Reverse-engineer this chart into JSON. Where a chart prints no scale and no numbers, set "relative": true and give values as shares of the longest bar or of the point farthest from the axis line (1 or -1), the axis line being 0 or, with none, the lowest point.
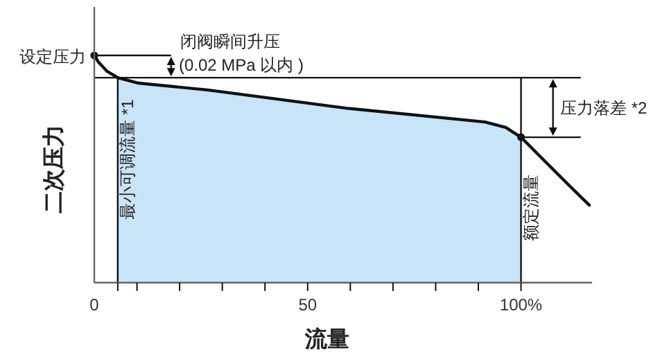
{
  "chart_data": {
    "type": "line",
    "relative": true,
    "xlabel": "流量",
    "ylabel": "二次压力",
    "xlim": [
      0,
      116
    ],
    "xticks": [
      0,
      {
        "value": 5.5,
        "label": null
      },
      {
        "value": 10,
        "label": null
      },
      {
        "value": 20,
        "label": null
      },
      {
        "value": 30,
        "label": null
      },
      {
        "value": 40,
        "label": null
      },
      50,
      {
        "value": 60,
        "label": null
      },
      {
        "value": 70,
        "label": null
      },
      {
        "value": 80,
        "label": null
      },
      {
        "value": 90,
        "label": null
      },
      {
        "value": 100,
        "label": "100%"
      }
    ],
    "tick_labels": "x",
    "line_style": "solid",
    "series": [
      {
        "type": "area",
        "color": "#c8e4f8",
        "x": [
          5.5,
          10.4,
          26.6,
          59,
          91.6,
          96.4,
          100
        ],
        "values": [
          0.902,
          0.878,
          0.848,
          0.768,
          0.707,
          0.683,
          0.64
        ]
      },
      {
        "type": "line",
        "color": "#111111",
        "x": [
          0,
          1,
          3,
          5.5,
          10.4,
          26.6,
          59,
          91.6,
          96.4,
          100,
          104.5,
          111,
          116
        ],
        "values": [
          1,
          0.97,
          0.93,
          0.902,
          0.878,
          0.848,
          0.768,
          0.707,
          0.683,
          0.64,
          0.555,
          0.433,
          0.341
        ]
      },
      {
        "type": "scatter",
        "color": "#111111",
        "marker": "circle",
        "x": [
          0,
          100
        ],
        "values": [
          1,
          0.64
        ]
      }
    ],
    "ref_lines": [
      {
        "axis": "y",
        "value": 1,
        "label": "设定压力"
      },
      {
        "axis": "y",
        "value": 0.902,
        "label": null
      },
      {
        "axis": "y",
        "value": 0.64,
        "label": null
      },
      {
        "axis": "x",
        "value": 5.5,
        "label": "最小可调流量 *1"
      },
      {
        "axis": "x",
        "value": 100,
        "label": "额定流量"
      }
    ],
    "annotations": [
      "闭阀瞬间升压",
      "(0.02 MPa 以内 )",
      "压力落差 *2"
    ]
  }
}
